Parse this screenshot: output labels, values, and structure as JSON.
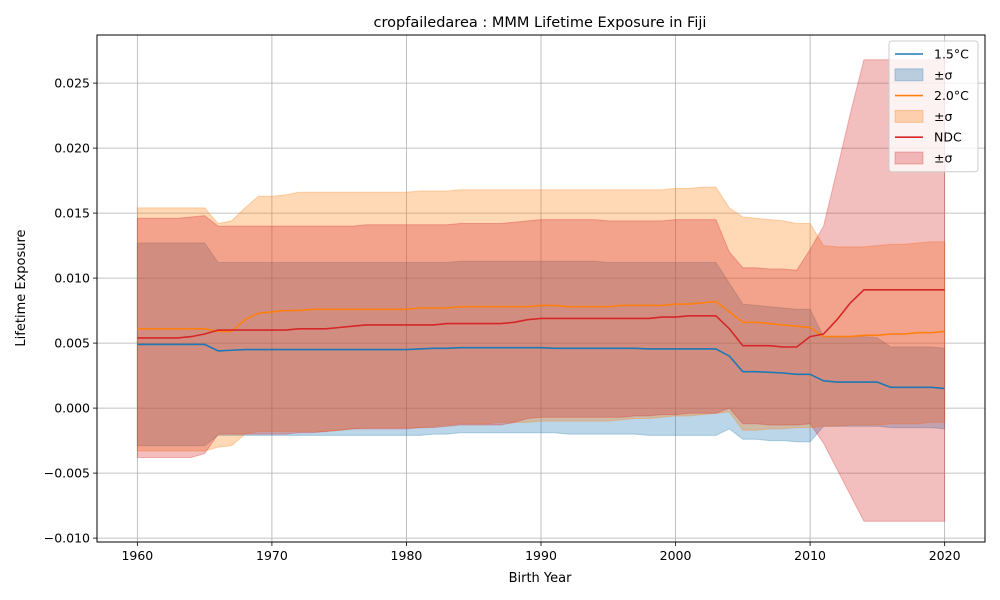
{
  "chart_data": {
    "type": "line",
    "title": "cropfailedarea : MMM Lifetime Exposure in Fiji",
    "xlabel": "Birth Year",
    "ylabel": "Lifetime Exposure",
    "xlim": [
      1957,
      2023
    ],
    "ylim": [
      -0.0103,
      0.0287
    ],
    "xticks": [
      1960,
      1970,
      1980,
      1990,
      2000,
      2010,
      2020
    ],
    "xtick_labels": [
      "1960",
      "1970",
      "1980",
      "1990",
      "2000",
      "2010",
      "2020"
    ],
    "yticks": [
      -0.01,
      -0.005,
      0.0,
      0.005,
      0.01,
      0.015,
      0.02,
      0.025
    ],
    "ytick_labels": [
      "−0.010",
      "−0.005",
      "0.000",
      "0.005",
      "0.010",
      "0.015",
      "0.020",
      "0.025"
    ],
    "grid": true,
    "legend_position": "top-right",
    "x": [
      1960,
      1961,
      1962,
      1963,
      1964,
      1965,
      1966,
      1967,
      1968,
      1969,
      1970,
      1971,
      1972,
      1973,
      1974,
      1975,
      1976,
      1977,
      1978,
      1979,
      1980,
      1981,
      1982,
      1983,
      1984,
      1985,
      1986,
      1987,
      1988,
      1989,
      1990,
      1991,
      1992,
      1993,
      1994,
      1995,
      1996,
      1997,
      1998,
      1999,
      2000,
      2001,
      2002,
      2003,
      2004,
      2005,
      2006,
      2007,
      2008,
      2009,
      2010,
      2011,
      2012,
      2013,
      2014,
      2015,
      2016,
      2017,
      2018,
      2019,
      2020
    ],
    "series": [
      {
        "name": "1.5°C",
        "band_label": "±σ",
        "color": "#1f77b4",
        "mean": [
          0.0049,
          0.0049,
          0.0049,
          0.0049,
          0.0049,
          0.0049,
          0.0044,
          0.00445,
          0.0045,
          0.0045,
          0.0045,
          0.0045,
          0.0045,
          0.0045,
          0.0045,
          0.0045,
          0.0045,
          0.0045,
          0.0045,
          0.0045,
          0.0045,
          0.00455,
          0.0046,
          0.0046,
          0.00465,
          0.00465,
          0.00465,
          0.00465,
          0.00465,
          0.00465,
          0.00465,
          0.0046,
          0.0046,
          0.0046,
          0.0046,
          0.0046,
          0.0046,
          0.0046,
          0.00455,
          0.00455,
          0.00455,
          0.00455,
          0.00455,
          0.00455,
          0.004,
          0.0028,
          0.0028,
          0.00275,
          0.0027,
          0.0026,
          0.0026,
          0.0021,
          0.002,
          0.002,
          0.002,
          0.002,
          0.0016,
          0.0016,
          0.0016,
          0.0016,
          0.0015
        ],
        "upper": [
          0.0127,
          0.0127,
          0.0127,
          0.0127,
          0.0127,
          0.0127,
          0.0112,
          0.0112,
          0.0112,
          0.0112,
          0.0112,
          0.0112,
          0.0112,
          0.0112,
          0.0112,
          0.0112,
          0.0112,
          0.0112,
          0.0112,
          0.0112,
          0.0112,
          0.0112,
          0.0112,
          0.0112,
          0.0113,
          0.0113,
          0.0113,
          0.0113,
          0.0113,
          0.0113,
          0.0113,
          0.0113,
          0.0113,
          0.0113,
          0.0113,
          0.0112,
          0.0112,
          0.0112,
          0.0112,
          0.0112,
          0.0112,
          0.0112,
          0.0112,
          0.0112,
          0.0096,
          0.008,
          0.0079,
          0.0078,
          0.0077,
          0.0076,
          0.0076,
          0.0055,
          0.0055,
          0.0055,
          0.0055,
          0.0054,
          0.0047,
          0.0047,
          0.0047,
          0.0047,
          0.0046
        ],
        "lower": [
          -0.0029,
          -0.0029,
          -0.0029,
          -0.0029,
          -0.0029,
          -0.0029,
          -0.0021,
          -0.0021,
          -0.0021,
          -0.0021,
          -0.0021,
          -0.0021,
          -0.0021,
          -0.0021,
          -0.0021,
          -0.0021,
          -0.0021,
          -0.0021,
          -0.0021,
          -0.0021,
          -0.0021,
          -0.0021,
          -0.002,
          -0.002,
          -0.0019,
          -0.0019,
          -0.0019,
          -0.0019,
          -0.0019,
          -0.0019,
          -0.0019,
          -0.0019,
          -0.002,
          -0.002,
          -0.002,
          -0.002,
          -0.002,
          -0.002,
          -0.0021,
          -0.0021,
          -0.0021,
          -0.0021,
          -0.0021,
          -0.0021,
          -0.0016,
          -0.0024,
          -0.0024,
          -0.0025,
          -0.0025,
          -0.0026,
          -0.0026,
          -0.0014,
          -0.0014,
          -0.0014,
          -0.0014,
          -0.0014,
          -0.0015,
          -0.0015,
          -0.0015,
          -0.0015,
          -0.0016
        ]
      },
      {
        "name": "2.0°C",
        "band_label": "±σ",
        "color": "#ff7f0e",
        "mean": [
          0.0061,
          0.0061,
          0.0061,
          0.0061,
          0.0061,
          0.0061,
          0.0059,
          0.0059,
          0.0068,
          0.0073,
          0.0074,
          0.0075,
          0.0075,
          0.0076,
          0.0076,
          0.0076,
          0.0076,
          0.0076,
          0.0076,
          0.0076,
          0.0076,
          0.0077,
          0.0077,
          0.0077,
          0.0078,
          0.0078,
          0.0078,
          0.0078,
          0.0078,
          0.0078,
          0.0079,
          0.0079,
          0.0078,
          0.0078,
          0.0078,
          0.0078,
          0.0079,
          0.0079,
          0.0079,
          0.0079,
          0.008,
          0.008,
          0.0081,
          0.0082,
          0.0074,
          0.0066,
          0.0066,
          0.0065,
          0.0064,
          0.0063,
          0.0062,
          0.0055,
          0.0055,
          0.0055,
          0.0056,
          0.0056,
          0.0057,
          0.0057,
          0.0058,
          0.0058,
          0.0059
        ],
        "upper": [
          0.0154,
          0.0154,
          0.0154,
          0.0154,
          0.0154,
          0.0154,
          0.0142,
          0.0144,
          0.0154,
          0.0163,
          0.0163,
          0.0164,
          0.0166,
          0.0166,
          0.0166,
          0.0166,
          0.0166,
          0.0166,
          0.0166,
          0.0166,
          0.0166,
          0.0167,
          0.0167,
          0.0167,
          0.0168,
          0.0168,
          0.0168,
          0.0168,
          0.0168,
          0.0168,
          0.0168,
          0.0168,
          0.0168,
          0.0168,
          0.0168,
          0.0168,
          0.0168,
          0.0168,
          0.0168,
          0.0168,
          0.0169,
          0.0169,
          0.017,
          0.017,
          0.0154,
          0.0147,
          0.0146,
          0.0145,
          0.0144,
          0.0142,
          0.0142,
          0.0125,
          0.0124,
          0.0124,
          0.0124,
          0.0125,
          0.0126,
          0.0126,
          0.0127,
          0.0128,
          0.0128
        ],
        "lower": [
          -0.0033,
          -0.0033,
          -0.0033,
          -0.0033,
          -0.0033,
          -0.0033,
          -0.003,
          -0.0029,
          -0.002,
          -0.0018,
          -0.0018,
          -0.0018,
          -0.0018,
          -0.0018,
          -0.0018,
          -0.0017,
          -0.0016,
          -0.0015,
          -0.0015,
          -0.0015,
          -0.0015,
          -0.0015,
          -0.0014,
          -0.0013,
          -0.0012,
          -0.0012,
          -0.0012,
          -0.0011,
          -0.0011,
          -0.0011,
          -0.001,
          -0.001,
          -0.001,
          -0.001,
          -0.001,
          -0.001,
          -0.0009,
          -0.0008,
          -0.0008,
          -0.0007,
          -0.0006,
          -0.0006,
          -0.0005,
          -0.0004,
          -0.0003,
          -0.0017,
          -0.0017,
          -0.0016,
          -0.0016,
          -0.0015,
          -0.0015,
          -0.0014,
          -0.0014,
          -0.0013,
          -0.0013,
          -0.0013,
          -0.0012,
          -0.0012,
          -0.0012,
          -0.0011,
          -0.0011
        ]
      },
      {
        "name": "NDC",
        "band_label": "±σ",
        "color": "#d62728",
        "mean": [
          0.0054,
          0.0054,
          0.0054,
          0.0054,
          0.0055,
          0.0057,
          0.006,
          0.006,
          0.006,
          0.006,
          0.006,
          0.006,
          0.0061,
          0.0061,
          0.0061,
          0.0062,
          0.0063,
          0.0064,
          0.0064,
          0.0064,
          0.0064,
          0.0064,
          0.0064,
          0.0065,
          0.0065,
          0.0065,
          0.0065,
          0.0065,
          0.0066,
          0.0068,
          0.0069,
          0.0069,
          0.0069,
          0.0069,
          0.0069,
          0.0069,
          0.0069,
          0.0069,
          0.0069,
          0.007,
          0.007,
          0.0071,
          0.0071,
          0.0071,
          0.0061,
          0.0048,
          0.0048,
          0.0048,
          0.0047,
          0.0047,
          0.0055,
          0.0057,
          0.0068,
          0.0081,
          0.0091,
          0.0091,
          0.0091,
          0.0091,
          0.0091,
          0.0091,
          0.0091
        ],
        "upper": [
          0.0146,
          0.0146,
          0.0146,
          0.0146,
          0.0147,
          0.0148,
          0.014,
          0.014,
          0.014,
          0.014,
          0.014,
          0.014,
          0.014,
          0.014,
          0.014,
          0.014,
          0.014,
          0.0141,
          0.0141,
          0.0141,
          0.0141,
          0.0141,
          0.0141,
          0.0141,
          0.0142,
          0.0142,
          0.0142,
          0.0142,
          0.0143,
          0.0144,
          0.0145,
          0.0145,
          0.0145,
          0.0145,
          0.0145,
          0.0144,
          0.0144,
          0.0144,
          0.0144,
          0.0144,
          0.0145,
          0.0145,
          0.0145,
          0.0145,
          0.012,
          0.0108,
          0.0108,
          0.0107,
          0.0107,
          0.0106,
          0.0122,
          0.014,
          0.0183,
          0.0227,
          0.0268,
          0.0268,
          0.0268,
          0.0268,
          0.0268,
          0.0268,
          0.0268
        ],
        "lower": [
          -0.0038,
          -0.0038,
          -0.0038,
          -0.0038,
          -0.0038,
          -0.0035,
          -0.002,
          -0.002,
          -0.002,
          -0.002,
          -0.002,
          -0.002,
          -0.0019,
          -0.0019,
          -0.0018,
          -0.0017,
          -0.0016,
          -0.0016,
          -0.0016,
          -0.0016,
          -0.0016,
          -0.0015,
          -0.0015,
          -0.0014,
          -0.0013,
          -0.0013,
          -0.0013,
          -0.0013,
          -0.0011,
          -0.0008,
          -0.0007,
          -0.0007,
          -0.0007,
          -0.0007,
          -0.0007,
          -0.0007,
          -0.0007,
          -0.0006,
          -0.0006,
          -0.0005,
          -0.0005,
          -0.0004,
          -0.0004,
          -0.0004,
          0.0,
          -0.0012,
          -0.0012,
          -0.0013,
          -0.0013,
          -0.0013,
          -0.0012,
          -0.0027,
          -0.0047,
          -0.0067,
          -0.0087,
          -0.0087,
          -0.0087,
          -0.0087,
          -0.0087,
          -0.0087,
          -0.0087
        ]
      }
    ]
  }
}
